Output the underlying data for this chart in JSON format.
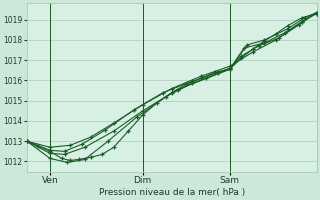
{
  "background_color": "#cce8d8",
  "plot_bg_color": "#d8f0e4",
  "grid_color": "#aacaba",
  "line_color": "#1a5c28",
  "marker": "+",
  "xlabel": "Pression niveau de la mer( hPa )",
  "ylim": [
    1011.5,
    1019.8
  ],
  "yticks": [
    1012,
    1013,
    1014,
    1015,
    1016,
    1017,
    1018,
    1019
  ],
  "xtick_labels": [
    "Ven",
    "Dim",
    "Sam"
  ],
  "xtick_positions": [
    0.08,
    0.4,
    0.7
  ],
  "vline_positions": [
    0.08,
    0.4,
    0.7
  ],
  "series": [
    {
      "x": [
        0.0,
        0.04,
        0.08,
        0.12,
        0.15,
        0.18,
        0.22,
        0.26,
        0.3,
        0.35,
        0.4,
        0.45,
        0.5,
        0.55,
        0.6,
        0.65,
        0.7,
        0.74,
        0.78,
        0.82,
        0.86,
        0.9,
        0.95,
        1.0
      ],
      "y": [
        1013.0,
        1012.75,
        1012.5,
        1012.15,
        1012.05,
        1012.1,
        1012.2,
        1012.35,
        1012.7,
        1013.5,
        1014.3,
        1014.9,
        1015.4,
        1015.8,
        1016.1,
        1016.4,
        1016.55,
        1017.1,
        1017.55,
        1017.95,
        1018.3,
        1018.7,
        1019.1,
        1019.3
      ]
    },
    {
      "x": [
        0.0,
        0.08,
        0.15,
        0.22,
        0.3,
        0.4,
        0.5,
        0.6,
        0.7,
        0.78,
        0.86,
        0.95,
        1.0
      ],
      "y": [
        1013.0,
        1012.7,
        1012.8,
        1013.2,
        1013.9,
        1014.8,
        1015.6,
        1016.2,
        1016.7,
        1017.4,
        1018.0,
        1018.9,
        1019.35
      ]
    },
    {
      "x": [
        0.0,
        0.08,
        0.14,
        0.2,
        0.28,
        0.38,
        0.48,
        0.57,
        0.66,
        0.7,
        0.75,
        0.82,
        0.89,
        0.95,
        1.0
      ],
      "y": [
        1013.0,
        1012.15,
        1011.95,
        1012.1,
        1013.0,
        1014.2,
        1015.2,
        1015.85,
        1016.35,
        1016.55,
        1017.6,
        1017.85,
        1018.35,
        1018.9,
        1019.3
      ]
    },
    {
      "x": [
        0.0,
        0.08,
        0.13,
        0.2,
        0.3,
        0.4,
        0.52,
        0.62,
        0.7,
        0.76,
        0.82,
        0.9,
        0.96,
        1.0
      ],
      "y": [
        1013.0,
        1012.4,
        1012.35,
        1012.7,
        1013.5,
        1014.5,
        1015.55,
        1016.1,
        1016.55,
        1017.75,
        1018.0,
        1018.55,
        1019.1,
        1019.35
      ]
    },
    {
      "x": [
        0.0,
        0.08,
        0.13,
        0.19,
        0.27,
        0.37,
        0.47,
        0.57,
        0.66,
        0.7,
        0.74,
        0.8,
        0.87,
        0.94,
        1.0
      ],
      "y": [
        1013.0,
        1012.55,
        1012.5,
        1012.85,
        1013.55,
        1014.55,
        1015.4,
        1015.95,
        1016.4,
        1016.6,
        1017.2,
        1017.7,
        1018.1,
        1018.75,
        1019.35
      ]
    }
  ]
}
